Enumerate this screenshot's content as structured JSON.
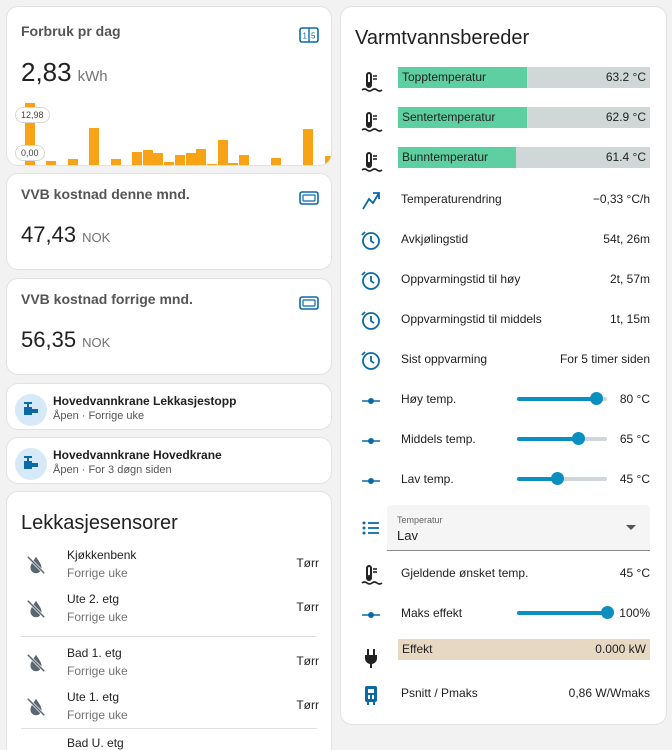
{
  "forbruk": {
    "title": "Forbruk pr dag",
    "value": "2,83",
    "unit": "kWh",
    "chip_max": "12,98",
    "chip_min": "0,00",
    "bars": [
      12.98,
      0.9,
      2.0,
      0.6,
      2.3,
      0.0,
      8.3,
      0.0,
      2.3,
      0.0,
      3.6,
      4.1,
      3.4,
      1.7,
      3.0,
      3.5,
      4.2,
      1.4,
      6.0,
      1.5,
      3.0,
      0.6,
      0.6,
      2.4,
      0.0,
      0.0,
      8.1,
      1.1,
      2.8
    ]
  },
  "vvb_denne": {
    "title": "VVB kostnad denne mnd.",
    "value": "47,43",
    "unit": "NOK"
  },
  "vvb_forrige": {
    "title": "VVB kostnad forrige mnd.",
    "value": "56,35",
    "unit": "NOK"
  },
  "valve1": {
    "title": "Hovedvannkrane Lekkasjestopp",
    "sub": "Åpen · Forrige uke"
  },
  "valve2": {
    "title": "Hovedvannkrane Hovedkrane",
    "sub": "Åpen · For 3 døgn siden"
  },
  "lekkasje": {
    "title": "Lekkasjesensorer",
    "sensors": [
      {
        "name": "Kjøkkenbenk",
        "sub": "Forrige uke",
        "state": "Tørr"
      },
      {
        "name": "Ute 2. etg",
        "sub": "Forrige uke",
        "state": "Tørr"
      },
      {
        "name": "Bad 1. etg",
        "sub": "Forrige uke",
        "state": "Tørr"
      },
      {
        "name": "Ute 1. etg",
        "sub": "Forrige uke",
        "state": "Tørr"
      },
      {
        "name": "Bad U. etg",
        "sub": "",
        "state": ""
      }
    ]
  },
  "vvb": {
    "title": "Varmtvannsbereder",
    "temps": [
      {
        "label": "Topptemperatur",
        "value": "63.2 °C",
        "fill": 0.51
      },
      {
        "label": "Sentertemperatur",
        "value": "62.9 °C",
        "fill": 0.51
      },
      {
        "label": "Bunntemperatur",
        "value": "61.4 °C",
        "fill": 0.47
      }
    ],
    "rows": [
      {
        "label": "Temperaturendring",
        "value": "−0,33 °C/h"
      },
      {
        "label": "Avkjølingstid",
        "value": "54t, 26m"
      },
      {
        "label": "Oppvarmingstid til høy",
        "value": "2t, 57m"
      },
      {
        "label": "Oppvarmingstid til middels",
        "value": "1t, 15m"
      },
      {
        "label": "Sist oppvarming",
        "value": "For 5 timer siden"
      }
    ],
    "sliders": [
      {
        "label": "Høy temp.",
        "value": "80 °C",
        "level": 0.88
      },
      {
        "label": "Middels temp.",
        "value": "65 °C",
        "level": 0.68
      },
      {
        "label": "Lav temp.",
        "value": "45 °C",
        "level": 0.44
      }
    ],
    "select": {
      "label": "Temperatur",
      "value": "Lav"
    },
    "onsket": {
      "label": "Gjeldende ønsket temp.",
      "value": "45 °C"
    },
    "maks": {
      "label": "Maks effekt",
      "value": "100%",
      "level": 1.0
    },
    "effekt": {
      "label": "Effekt",
      "value": "0.000 kW"
    },
    "psnitt": {
      "label": "Psnitt / Pmaks",
      "value": "0,86 W/Wmaks"
    }
  },
  "colors": {
    "accent": "#0b8ec0",
    "bar": "#f7a315",
    "temp_fill": "#5ecfa0",
    "effekt_bg": "#e6d8c3"
  }
}
